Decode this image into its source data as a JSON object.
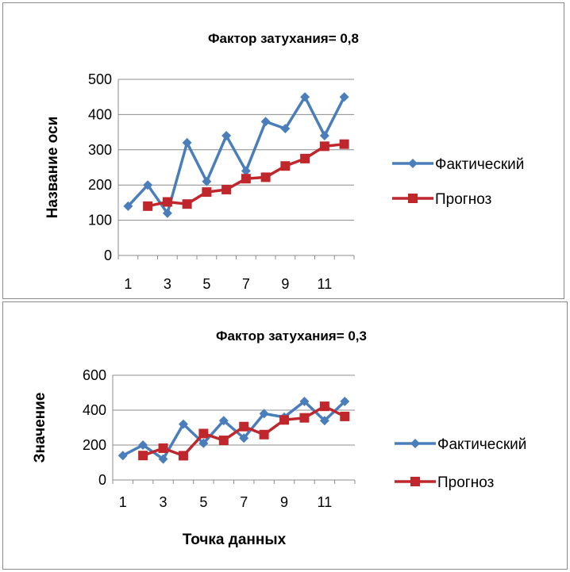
{
  "chart_data": [
    {
      "type": "line",
      "title": "Фактор затухания= 0,8",
      "xlabel": "",
      "ylabel": "Название оси",
      "ylim": [
        0,
        500
      ],
      "yticks": [
        0,
        100,
        200,
        300,
        400,
        500
      ],
      "x": [
        1,
        2,
        3,
        4,
        5,
        6,
        7,
        8,
        9,
        10,
        11,
        12
      ],
      "xtick_labels": [
        "1",
        "3",
        "5",
        "7",
        "9",
        "11"
      ],
      "grid": "horizontal",
      "legend_position": "right",
      "series": [
        {
          "name": "Фактический",
          "color": "#4A7EBB",
          "marker": "diamond",
          "values": [
            140,
            200,
            120,
            320,
            210,
            340,
            240,
            380,
            360,
            450,
            340,
            450
          ]
        },
        {
          "name": "Прогноз",
          "color": "#C0272D",
          "marker": "square",
          "values": [
            null,
            140,
            152,
            146,
            180,
            187,
            218,
            222,
            254,
            275,
            310,
            316
          ]
        }
      ]
    },
    {
      "type": "line",
      "title": "Фактор затухания= 0,3",
      "xlabel": "Точка данных",
      "ylabel": "Значение",
      "ylim": [
        0,
        600
      ],
      "yticks": [
        0,
        200,
        400,
        600
      ],
      "x": [
        1,
        2,
        3,
        4,
        5,
        6,
        7,
        8,
        9,
        10,
        11,
        12
      ],
      "xtick_labels": [
        "1",
        "3",
        "5",
        "7",
        "9",
        "11"
      ],
      "grid": "horizontal",
      "legend_position": "right",
      "series": [
        {
          "name": "Фактический",
          "color": "#4A7EBB",
          "marker": "diamond",
          "values": [
            140,
            200,
            120,
            320,
            210,
            340,
            240,
            380,
            360,
            450,
            340,
            450
          ]
        },
        {
          "name": "Прогноз",
          "color": "#C0272D",
          "marker": "square",
          "values": [
            null,
            140,
            182,
            139,
            266,
            227,
            306,
            260,
            344,
            356,
            422,
            364
          ]
        }
      ]
    }
  ]
}
